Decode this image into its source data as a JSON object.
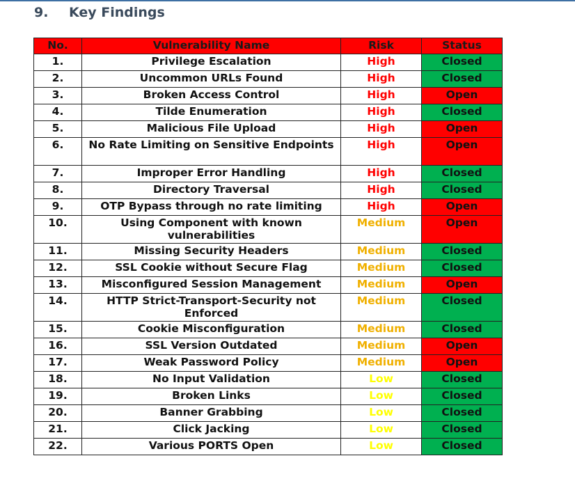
{
  "section": {
    "number": "9.",
    "title": "Key Findings"
  },
  "table": {
    "headers": {
      "no": "No.",
      "name": "Vulnerability Name",
      "risk": "Risk",
      "status": "Status"
    },
    "rows": [
      {
        "no": "1.",
        "name": "Privilege Escalation",
        "risk": "High",
        "status": "Closed"
      },
      {
        "no": "2.",
        "name": "Uncommon URLs Found",
        "risk": "High",
        "status": "Closed"
      },
      {
        "no": "3.",
        "name": "Broken Access Control",
        "risk": "High",
        "status": "Open"
      },
      {
        "no": "4.",
        "name": "Tilde Enumeration",
        "risk": "High",
        "status": "Closed"
      },
      {
        "no": "5.",
        "name": "Malicious File Upload",
        "risk": "High",
        "status": "Open"
      },
      {
        "no": "6.",
        "name": "No Rate Limiting on Sensitive Endpoints",
        "risk": "High",
        "status": "Open"
      },
      {
        "no": "7.",
        "name": "Improper Error Handling",
        "risk": "High",
        "status": "Closed"
      },
      {
        "no": "8.",
        "name": "Directory Traversal",
        "risk": "High",
        "status": "Closed"
      },
      {
        "no": "9.",
        "name": "OTP Bypass through no rate limiting",
        "risk": "High",
        "status": "Open"
      },
      {
        "no": "10.",
        "name": "Using Component with known vulnerabilities",
        "risk": "Medium",
        "status": "Open"
      },
      {
        "no": "11.",
        "name": "Missing Security Headers",
        "risk": "Medium",
        "status": "Closed"
      },
      {
        "no": "12.",
        "name": "SSL Cookie without Secure Flag",
        "risk": "Medium",
        "status": "Closed"
      },
      {
        "no": "13.",
        "name": "Misconfigured Session Management",
        "risk": "Medium",
        "status": "Open"
      },
      {
        "no": "14.",
        "name": "HTTP Strict-Transport-Security not Enforced",
        "risk": "Medium",
        "status": "Closed"
      },
      {
        "no": "15.",
        "name": "Cookie Misconfiguration",
        "risk": "Medium",
        "status": "Closed"
      },
      {
        "no": "16.",
        "name": "SSL Version Outdated",
        "risk": "Medium",
        "status": "Open"
      },
      {
        "no": "17.",
        "name": "Weak Password Policy",
        "risk": "Medium",
        "status": "Open"
      },
      {
        "no": "18.",
        "name": "No Input Validation",
        "risk": "Low",
        "status": "Closed"
      },
      {
        "no": "19.",
        "name": "Broken Links",
        "risk": "Low",
        "status": "Closed"
      },
      {
        "no": "20.",
        "name": "Banner Grabbing",
        "risk": "Low",
        "status": "Closed"
      },
      {
        "no": "21.",
        "name": "Click Jacking",
        "risk": "Low",
        "status": "Closed"
      },
      {
        "no": "22.",
        "name": "Various PORTS Open",
        "risk": "Low",
        "status": "Closed"
      }
    ]
  },
  "colors": {
    "header_bg": "#ff0000",
    "risk_high": "#ff0000",
    "risk_medium": "#f0b000",
    "risk_low": "#ffff00",
    "status_closed": "#00b050",
    "status_open": "#ff0000",
    "heading_text": "#3a4a5c"
  }
}
